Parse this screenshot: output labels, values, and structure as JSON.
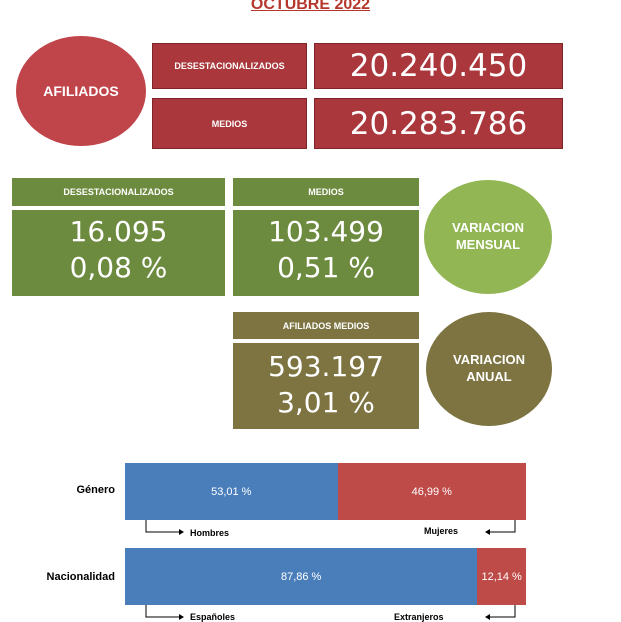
{
  "title": "OCTUBRE 2022",
  "afiliados": {
    "label": "AFILIADOS",
    "desest_label": "DESESTACIONALIZADOS",
    "desest_value": "20.240.450",
    "medios_label": "MEDIOS",
    "medios_value": "20.283.786"
  },
  "variacion_mensual": {
    "label_line1": "VARIACION",
    "label_line2": "MENSUAL",
    "desest_label": "DESESTACIONALIZADOS",
    "desest_abs": "16.095",
    "desest_pct": "0,08 %",
    "medios_label": "MEDIOS",
    "medios_abs": "103.499",
    "medios_pct": "0,51 %"
  },
  "variacion_anual": {
    "label_line1": "VARIACION",
    "label_line2": "ANUAL",
    "head_label": "AFILIADOS MEDIOS",
    "abs": "593.197",
    "pct": "3,01 %"
  },
  "bars": {
    "genero": {
      "label": "Género",
      "left_pct": 53.01,
      "left_text": "53,01 %",
      "right_text": "46,99 %",
      "left_name": "Hombres",
      "right_name": "Mujeres"
    },
    "nacionalidad": {
      "label": "Nacionalidad",
      "left_pct": 87.86,
      "left_text": "87,86 %",
      "right_text": "12,14 %",
      "left_name": "Españoles",
      "right_name": "Extranjeros"
    }
  },
  "colors": {
    "red": "#a9373b",
    "green": "#6d8b3f",
    "light_green": "#92b653",
    "olive": "#7d7442",
    "blue": "#4a7ebb"
  }
}
